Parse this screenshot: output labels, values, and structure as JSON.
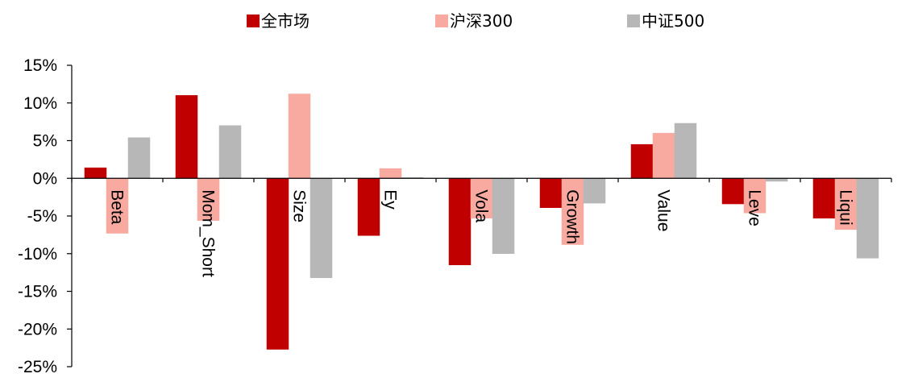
{
  "chart_data": {
    "type": "bar",
    "categories": [
      "Beta",
      "Mom_Short",
      "Size",
      "Ey",
      "Vola",
      "Growth",
      "Value",
      "Leve",
      "Liqui"
    ],
    "series": [
      {
        "name": "全市场",
        "color": "#c00000",
        "values": [
          1.4,
          11.0,
          -22.7,
          -7.6,
          -11.5,
          -3.9,
          4.5,
          -3.4,
          -5.3
        ]
      },
      {
        "name": "沪深300",
        "color": "#f8a9a0",
        "values": [
          -7.3,
          -5.6,
          11.2,
          1.3,
          -5.3,
          -8.8,
          6.0,
          -4.6,
          -6.8
        ]
      },
      {
        "name": "中证500",
        "color": "#b7b7b7",
        "values": [
          5.4,
          7.0,
          -13.2,
          0.1,
          -10.0,
          -3.3,
          7.3,
          -0.4,
          -10.6
        ]
      }
    ],
    "yticks": [
      "15%",
      "10%",
      "5%",
      "0%",
      "-5%",
      "-10%",
      "-15%",
      "-20%",
      "-25%"
    ],
    "ylim": [
      -25,
      15
    ],
    "legend_position": "top"
  }
}
